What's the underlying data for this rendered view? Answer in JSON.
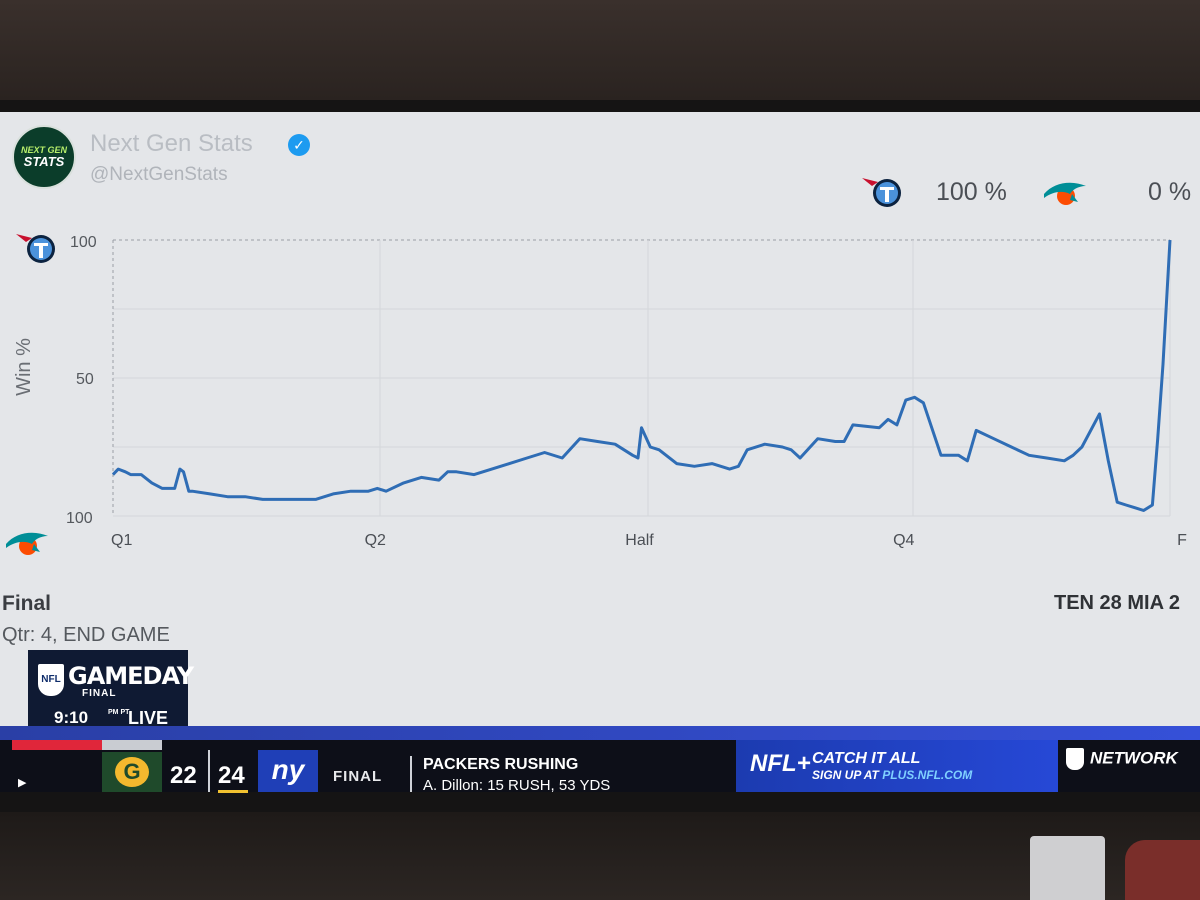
{
  "tweet": {
    "avatar_line1": "NEXT GEN",
    "avatar_line2": "STATS",
    "name": "Next Gen Stats",
    "handle": "@NextGenStats"
  },
  "header": {
    "ten_pct": "100 %",
    "mia_pct": "0 %"
  },
  "chart_data": {
    "type": "line",
    "ylabel": "Win %",
    "top_label": "100",
    "mid_label": "50",
    "bottom_label": "100",
    "quarters": [
      "Q1",
      "Q2",
      "Half",
      "Q4",
      "F"
    ],
    "ylim": [
      0,
      100
    ],
    "grid": true,
    "series": [
      {
        "color": "#2f6db5",
        "x": [
          0,
          0.3,
          0.7,
          1.0,
          1.6,
          2.2,
          2.8,
          3.5,
          3.8,
          4.0,
          4.3,
          4.5,
          5.5,
          6.5,
          7.5,
          8.5,
          9.5,
          10.5,
          11.5,
          12.5,
          13.5,
          14.5,
          15.0,
          15.5,
          16.5,
          17.5,
          18.5,
          19.0,
          19.5,
          20.5,
          21.5,
          22.5,
          23.5,
          24.5,
          25.5,
          26.5,
          27.5,
          28.5,
          29.5,
          29.8,
          30.0,
          30.5,
          31.0,
          32.0,
          33.0,
          34.0,
          35.0,
          35.5,
          36.0,
          37.0,
          38.0,
          38.5,
          39.0,
          40.0,
          41.0,
          41.5,
          42.0,
          43.5,
          44.0,
          44.5,
          45.0,
          45.5,
          46.0,
          47.0,
          48.0,
          48.5,
          49.0,
          50.0,
          51.0,
          52.0,
          53.0,
          54.0,
          54.5,
          55.0,
          56.0,
          56.5,
          57.0,
          57.5,
          58.0,
          58.5,
          59.0,
          59.3,
          59.6,
          60.0
        ],
        "y": [
          15,
          17,
          16,
          15,
          15,
          12,
          10,
          10,
          17,
          16,
          9,
          9,
          8,
          7,
          7,
          6,
          6,
          6,
          6,
          8,
          9,
          9,
          10,
          9,
          12,
          14,
          13,
          16,
          16,
          15,
          17,
          19,
          21,
          23,
          21,
          28,
          27,
          26,
          22,
          21,
          32,
          25,
          24,
          19,
          18,
          19,
          17,
          18,
          24,
          26,
          25,
          24,
          21,
          28,
          27,
          27,
          33,
          32,
          35,
          33,
          42,
          43,
          41,
          22,
          22,
          20,
          31,
          28,
          25,
          22,
          21,
          20,
          22,
          25,
          37,
          20,
          5,
          4,
          3,
          2,
          4,
          28,
          55,
          100
        ]
      }
    ]
  },
  "footer": {
    "status": "Final",
    "quarter_text": "Qtr: 4, END GAME",
    "score_text": "TEN 28 MIA 2"
  },
  "gameday": {
    "shield": "NFL",
    "title": "GAMEDAY",
    "subtitle": "FINAL",
    "time": "9:10",
    "tz": "PM PT",
    "live": "LIVE"
  },
  "ticker": {
    "team_a_logo": "G",
    "team_a_score": "22",
    "team_b_score": "24",
    "team_b_logo": "ny",
    "status": "FINAL",
    "stat_title": "PACKERS RUSHING",
    "stat_line": "A. Dillon: 15 RUSH, 53 YDS",
    "promo_brand": "NFL+",
    "promo_line1": "CATCH IT ALL",
    "promo_line2_pre": "SIGN UP AT ",
    "promo_url": "PLUS.NFL.COM",
    "network": "NETWORK"
  },
  "colors": {
    "titans_navy": "#0c2340",
    "titans_blue": "#4b92db",
    "titans_red": "#c8102e",
    "dolphins_aqua": "#008e97",
    "dolphins_orange": "#fc4c02"
  }
}
